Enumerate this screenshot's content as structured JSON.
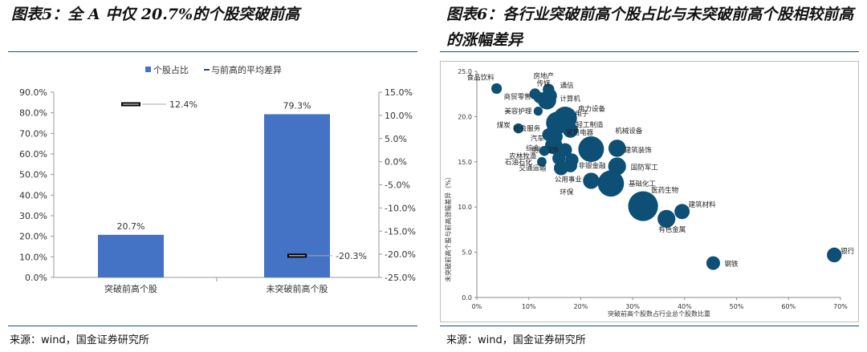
{
  "titles": {
    "left": "图表5：全 A 中仅 20.7%的个股突破前高",
    "right": "图表6：各行业突破前高个股占比与未突破前高个股相较前高的涨幅差异"
  },
  "sources": {
    "left": "来源：wind，国金证券研究所",
    "right": "来源：wind，国金证券研究所"
  },
  "colors": {
    "bar": "#4472c4",
    "bubble": "#0d4f75",
    "rule": "#1f4e79"
  },
  "chart_data": [
    {
      "type": "bar",
      "categories": [
        "突破前高个股",
        "未突破前高个股"
      ],
      "series": [
        {
          "name": "个股占比",
          "values": [
            20.7,
            79.3
          ],
          "labels": [
            "20.7%",
            "79.3%"
          ],
          "axis": "left"
        },
        {
          "name": "与前高的平均差异",
          "values": [
            12.4,
            -20.3
          ],
          "labels": [
            "12.4%",
            "-20.3%"
          ],
          "axis": "right"
        }
      ],
      "ylim_left": [
        0,
        90
      ],
      "ylim_right": [
        -25,
        15
      ],
      "yticks_left": [
        "0.0%",
        "10.0%",
        "20.0%",
        "30.0%",
        "40.0%",
        "50.0%",
        "60.0%",
        "70.0%",
        "80.0%",
        "90.0%"
      ],
      "yticks_right": [
        "-25.0%",
        "-20.0%",
        "-15.0%",
        "-10.0%",
        "-5.0%",
        "0.0%",
        "5.0%",
        "10.0%",
        "15.0%"
      ],
      "legend": "top"
    },
    {
      "type": "scatter",
      "xlabel": "突破前高个股数占行业总个股数比重",
      "ylabel": "未突破前高个股与前高涨幅差异（%）",
      "xlim": [
        0,
        70
      ],
      "ylim": [
        0,
        25
      ],
      "xticks": [
        "0%",
        "10%",
        "20%",
        "30%",
        "40%",
        "50%",
        "60%",
        "70%"
      ],
      "yticks": [
        "0.0",
        "5.0",
        "10.0",
        "15.0",
        "20.0",
        "25.0"
      ],
      "points": [
        {
          "name": "食品饮料",
          "x": 3.8,
          "y": 23.1,
          "s": 0.55
        },
        {
          "name": "房地产",
          "x": 13.8,
          "y": 23.0,
          "s": 0.65
        },
        {
          "name": "传媒",
          "x": 11.2,
          "y": 22.5,
          "s": 0.6
        },
        {
          "name": "通信",
          "x": 14.0,
          "y": 22.3,
          "s": 0.95
        },
        {
          "name": "商贸零售",
          "x": 12.0,
          "y": 22.1,
          "s": 0.6
        },
        {
          "name": "计算机",
          "x": 13.5,
          "y": 21.8,
          "s": 1.3
        },
        {
          "name": "美容护理",
          "x": 11.8,
          "y": 20.6,
          "s": 0.4
        },
        {
          "name": "电力设备",
          "x": 17.0,
          "y": 19.8,
          "s": 1.8
        },
        {
          "name": "电子",
          "x": 15.5,
          "y": 19.3,
          "s": 1.7
        },
        {
          "name": "煤炭",
          "x": 8.0,
          "y": 18.7,
          "s": 0.5
        },
        {
          "name": "轻工制造",
          "x": 18.0,
          "y": 18.5,
          "s": 1.0
        },
        {
          "name": "社会服务",
          "x": 13.8,
          "y": 18.0,
          "s": 0.75
        },
        {
          "name": "家用电器",
          "x": 15.0,
          "y": 17.8,
          "s": 1.05
        },
        {
          "name": "汽车",
          "x": 14.8,
          "y": 16.8,
          "s": 1.2
        },
        {
          "name": "机械设备",
          "x": 22.0,
          "y": 16.4,
          "s": 2.0
        },
        {
          "name": "建筑装饰",
          "x": 27.0,
          "y": 16.5,
          "s": 1.2
        },
        {
          "name": "纺织服饰",
          "x": 17.0,
          "y": 16.3,
          "s": 0.85
        },
        {
          "name": "综合",
          "x": 13.0,
          "y": 16.2,
          "s": 0.5
        },
        {
          "name": "农林牧渔",
          "x": 15.8,
          "y": 15.4,
          "s": 0.8
        },
        {
          "name": "石油石化",
          "x": 12.5,
          "y": 15.0,
          "s": 0.45
        },
        {
          "name": "交通运输",
          "x": 18.3,
          "y": 15.2,
          "s": 0.8
        },
        {
          "name": "非银金融",
          "x": 18.0,
          "y": 14.6,
          "s": 0.85
        },
        {
          "name": "国防军工",
          "x": 27.0,
          "y": 14.5,
          "s": 1.25
        },
        {
          "name": "公用事业",
          "x": 16.2,
          "y": 14.3,
          "s": 0.9
        },
        {
          "name": "基础化工",
          "x": 25.8,
          "y": 12.6,
          "s": 2.05
        },
        {
          "name": "环保",
          "x": 22.0,
          "y": 12.9,
          "s": 1.1
        },
        {
          "name": "医药生物",
          "x": 32.0,
          "y": 10.1,
          "s": 2.4
        },
        {
          "name": "建筑材料",
          "x": 39.5,
          "y": 9.5,
          "s": 1.0
        },
        {
          "name": "有色金属",
          "x": 36.5,
          "y": 8.7,
          "s": 1.25
        },
        {
          "name": "银行",
          "x": 68.8,
          "y": 4.7,
          "s": 0.95
        },
        {
          "name": "钢铁",
          "x": 45.5,
          "y": 3.8,
          "s": 0.85
        }
      ]
    }
  ]
}
